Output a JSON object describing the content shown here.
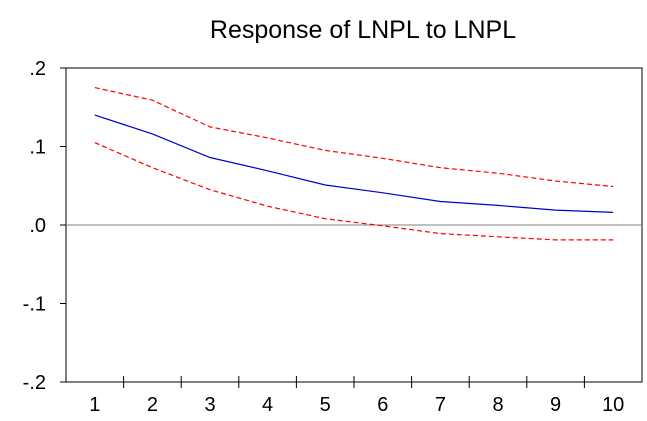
{
  "chart_data": {
    "type": "line",
    "title": "Response of LNPL to LNPL",
    "xlabel": "",
    "ylabel": "",
    "x": [
      1,
      2,
      3,
      4,
      5,
      6,
      7,
      8,
      9,
      10
    ],
    "x_tick_labels": [
      "1",
      "2",
      "3",
      "4",
      "5",
      "6",
      "7",
      "8",
      "9",
      "10"
    ],
    "ylim": [
      -0.2,
      0.2
    ],
    "y_ticks": [
      0.2,
      0.1,
      0.0,
      -0.1,
      -0.2
    ],
    "y_tick_labels": [
      ".2",
      ".1",
      ".0",
      "-.1",
      "-.2"
    ],
    "zero_line": true,
    "grid": false,
    "series": [
      {
        "id": "response",
        "color": "#0000cc",
        "dashed": false,
        "values": [
          0.14,
          0.116,
          0.086,
          0.069,
          0.051,
          0.041,
          0.03,
          0.025,
          0.019,
          0.016
        ]
      },
      {
        "id": "upper",
        "color": "#ff0000",
        "dashed": true,
        "values": [
          0.175,
          0.159,
          0.125,
          0.111,
          0.095,
          0.085,
          0.073,
          0.066,
          0.056,
          0.049
        ]
      },
      {
        "id": "lower",
        "color": "#ff0000",
        "dashed": true,
        "values": [
          0.105,
          0.073,
          0.045,
          0.024,
          0.008,
          -0.001,
          -0.011,
          -0.015,
          -0.019,
          -0.019
        ]
      }
    ]
  }
}
